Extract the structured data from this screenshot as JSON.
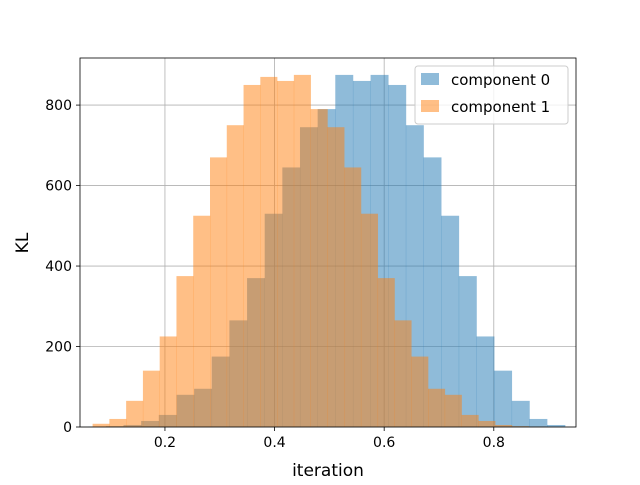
{
  "chart_data": {
    "type": "bar",
    "title": "",
    "xlabel": "iteration",
    "ylabel": "KL",
    "xlim": [
      0.045,
      0.95
    ],
    "ylim": [
      0,
      917
    ],
    "grid": true,
    "legend_placement": "top-right",
    "xticks": [
      0.2,
      0.4,
      0.6,
      0.8
    ],
    "yticks": [
      0,
      200,
      400,
      600,
      800
    ],
    "series": [
      {
        "name": "component 0",
        "color": "#1f77b4",
        "opacity": 0.5,
        "bin_edges": [
          0.06,
          0.0922,
          0.1244,
          0.1566,
          0.1888,
          0.221,
          0.2532,
          0.2854,
          0.3176,
          0.3498,
          0.382,
          0.4142,
          0.4464,
          0.4786,
          0.5108,
          0.543,
          0.5752,
          0.6074,
          0.6396,
          0.6718,
          0.704,
          0.7362,
          0.7684,
          0.8006,
          0.8328,
          0.865,
          0.8972,
          0.93
        ],
        "counts": [
          1,
          2,
          5,
          15,
          30,
          80,
          95,
          175,
          265,
          370,
          530,
          645,
          745,
          790,
          875,
          860,
          875,
          850,
          750,
          670,
          525,
          375,
          225,
          140,
          65,
          20,
          5
        ]
      },
      {
        "name": "component 1",
        "color": "#ff7f0e",
        "opacity": 0.5,
        "bin_edges": [
          0.068,
          0.0986,
          0.1292,
          0.1598,
          0.1904,
          0.221,
          0.2516,
          0.2822,
          0.3128,
          0.3434,
          0.374,
          0.4046,
          0.4352,
          0.4658,
          0.4964,
          0.527,
          0.5576,
          0.5882,
          0.6188,
          0.6494,
          0.68,
          0.7106,
          0.7412,
          0.7718,
          0.8024,
          0.833,
          0.8636,
          0.8942
        ],
        "counts": [
          8,
          20,
          65,
          140,
          225,
          375,
          525,
          670,
          750,
          850,
          870,
          860,
          875,
          790,
          745,
          645,
          530,
          370,
          265,
          175,
          95,
          80,
          30,
          15,
          5,
          2,
          1
        ]
      }
    ]
  }
}
